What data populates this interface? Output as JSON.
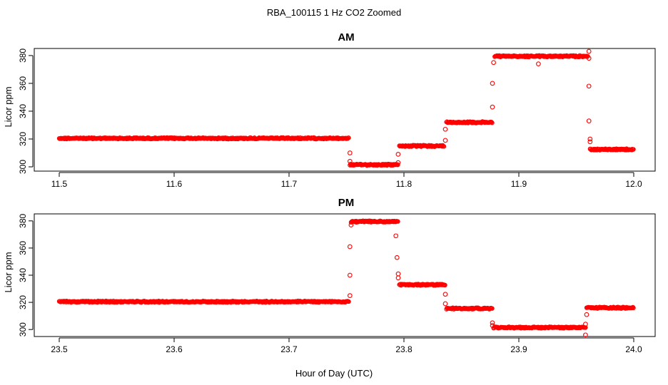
{
  "figure": {
    "title": "RBA_100115  1 Hz CO2 Zoomed",
    "xlabel": "Hour of Day (UTC)"
  },
  "colors": {
    "points": "#ff0000",
    "axes": "#000000"
  },
  "chart_data": [
    {
      "type": "scatter",
      "title": "AM",
      "ylabel": "Licor ppm",
      "xlabel": "",
      "xlim": [
        11.5,
        12.0
      ],
      "ylim": [
        300,
        382
      ],
      "xticks": [
        "11.5",
        "11.6",
        "11.7",
        "11.8",
        "11.9",
        "12.0"
      ],
      "yticks": [
        "300",
        "320",
        "340",
        "360",
        "380"
      ],
      "grid": false,
      "marker": "open-circle",
      "segments": [
        {
          "x0": 11.5,
          "x1": 11.752,
          "y": 320.5
        },
        {
          "x0": 11.753,
          "x1": 11.795,
          "y": 301.5
        },
        {
          "x0": 11.796,
          "x1": 11.835,
          "y": 315.0
        },
        {
          "x0": 11.837,
          "x1": 11.877,
          "y": 332.0
        },
        {
          "x0": 11.879,
          "x1": 11.96,
          "y": 379.5
        },
        {
          "x0": 11.962,
          "x1": 12.0,
          "y": 312.5
        }
      ],
      "transition_points": [
        [
          11.753,
          310
        ],
        [
          11.753,
          304
        ],
        [
          11.795,
          303
        ],
        [
          11.795,
          309
        ],
        [
          11.836,
          319
        ],
        [
          11.836,
          327
        ],
        [
          11.877,
          343
        ],
        [
          11.877,
          360
        ],
        [
          11.878,
          375
        ],
        [
          11.917,
          374
        ],
        [
          11.961,
          383
        ],
        [
          11.961,
          378
        ],
        [
          11.961,
          358
        ],
        [
          11.961,
          333
        ],
        [
          11.962,
          320
        ],
        [
          11.962,
          318
        ]
      ]
    },
    {
      "type": "scatter",
      "title": "PM",
      "ylabel": "Licor ppm",
      "xlabel": "",
      "xlim": [
        23.5,
        24.0
      ],
      "ylim": [
        298,
        382
      ],
      "xticks": [
        "23.5",
        "23.6",
        "23.7",
        "23.8",
        "23.9",
        "24.0"
      ],
      "yticks": [
        "300",
        "320",
        "340",
        "360",
        "380"
      ],
      "grid": false,
      "marker": "open-circle",
      "segments": [
        {
          "x0": 23.5,
          "x1": 23.752,
          "y": 320.5
        },
        {
          "x0": 23.754,
          "x1": 23.795,
          "y": 379.5
        },
        {
          "x0": 23.796,
          "x1": 23.836,
          "y": 333.0
        },
        {
          "x0": 23.837,
          "x1": 23.877,
          "y": 315.5
        },
        {
          "x0": 23.878,
          "x1": 23.958,
          "y": 301.5
        },
        {
          "x0": 23.959,
          "x1": 24.0,
          "y": 316.0
        }
      ],
      "transition_points": [
        [
          23.753,
          325
        ],
        [
          23.753,
          340
        ],
        [
          23.753,
          361
        ],
        [
          23.754,
          377
        ],
        [
          23.793,
          369
        ],
        [
          23.794,
          353
        ],
        [
          23.795,
          341
        ],
        [
          23.795,
          338
        ],
        [
          23.836,
          326
        ],
        [
          23.836,
          319
        ],
        [
          23.877,
          305
        ],
        [
          23.877,
          303
        ],
        [
          23.958,
          304
        ],
        [
          23.958,
          296
        ],
        [
          23.959,
          311
        ]
      ]
    }
  ]
}
